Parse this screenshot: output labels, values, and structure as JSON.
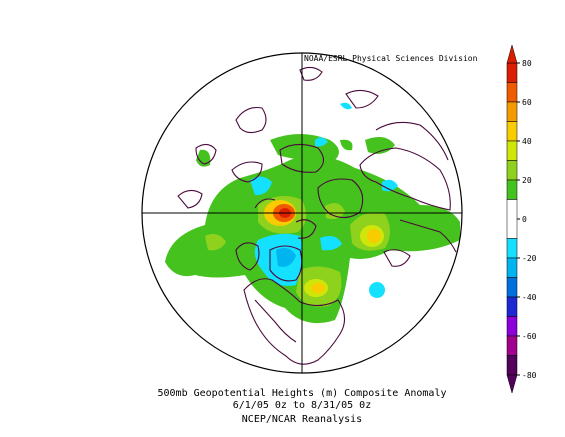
{
  "credit": "NOAA/ESRL Physical Sciences Division",
  "caption": {
    "line1": "500mb Geopotential Heights (m)   Composite Anomaly",
    "line2": "6/1/05 0z  to 8/31/05 0z",
    "line3": "NCEP/NCAR Reanalysis"
  },
  "colorbar": {
    "ticks": [
      "80",
      "60",
      "40",
      "20",
      "0",
      "-20",
      "-40",
      "-60",
      "-80"
    ],
    "bands": [
      {
        "low": 70,
        "high": 80,
        "color": "#dc1e00"
      },
      {
        "low": 60,
        "high": 70,
        "color": "#f05a00"
      },
      {
        "low": 50,
        "high": 60,
        "color": "#f59a00"
      },
      {
        "low": 40,
        "high": 50,
        "color": "#f8cc00"
      },
      {
        "low": 30,
        "high": 40,
        "color": "#cfe60a"
      },
      {
        "low": 20,
        "high": 30,
        "color": "#8fd21e"
      },
      {
        "low": 10,
        "high": 20,
        "color": "#46c21e"
      },
      {
        "low": -10,
        "high": 10,
        "color": "#ffffff"
      },
      {
        "low": -20,
        "high": -10,
        "color": "#14e0ff"
      },
      {
        "low": -30,
        "high": -20,
        "color": "#00b4f0"
      },
      {
        "low": -40,
        "high": -30,
        "color": "#0070e0"
      },
      {
        "low": -50,
        "high": -40,
        "color": "#1e28d2"
      },
      {
        "low": -60,
        "high": -50,
        "color": "#8c00dc"
      },
      {
        "low": -70,
        "high": -60,
        "color": "#a0008c"
      },
      {
        "low": -80,
        "high": -70,
        "color": "#55005a"
      }
    ]
  },
  "colors": {
    "coastline": "#4a0a3c",
    "frame": "#000000"
  }
}
